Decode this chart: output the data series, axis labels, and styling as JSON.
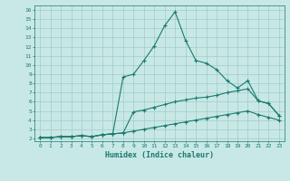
{
  "xlabel": "Humidex (Indice chaleur)",
  "bg_color": "#c8e8e5",
  "grid_color": "#a0ccc8",
  "line_color": "#1a7a6e",
  "xlim": [
    -0.5,
    23.5
  ],
  "ylim": [
    1.7,
    16.5
  ],
  "xticks": [
    0,
    1,
    2,
    3,
    4,
    5,
    6,
    7,
    8,
    9,
    10,
    11,
    12,
    13,
    14,
    15,
    16,
    17,
    18,
    19,
    20,
    21,
    22,
    23
  ],
  "yticks": [
    2,
    3,
    4,
    5,
    6,
    7,
    8,
    9,
    10,
    11,
    12,
    13,
    14,
    15,
    16
  ],
  "line1_x": [
    0,
    1,
    2,
    3,
    4,
    5,
    6,
    7,
    8,
    9,
    10,
    11,
    12,
    13,
    14,
    15,
    16,
    17,
    18,
    19,
    20,
    21,
    22,
    23
  ],
  "line1_y": [
    2.1,
    2.1,
    2.2,
    2.2,
    2.3,
    2.2,
    2.4,
    2.5,
    8.7,
    9.0,
    10.5,
    12.1,
    14.3,
    15.8,
    12.7,
    10.5,
    10.2,
    9.5,
    8.3,
    7.5,
    8.3,
    6.1,
    5.8,
    4.5
  ],
  "line2_x": [
    0,
    1,
    2,
    3,
    4,
    5,
    6,
    7,
    8,
    9,
    10,
    11,
    12,
    13,
    14,
    15,
    16,
    17,
    18,
    19,
    20,
    21,
    22,
    23
  ],
  "line2_y": [
    2.1,
    2.1,
    2.2,
    2.2,
    2.3,
    2.2,
    2.4,
    2.5,
    2.6,
    4.9,
    5.1,
    5.4,
    5.7,
    6.0,
    6.2,
    6.4,
    6.5,
    6.7,
    7.0,
    7.2,
    7.4,
    6.1,
    5.8,
    4.5
  ],
  "line3_x": [
    0,
    1,
    2,
    3,
    4,
    5,
    6,
    7,
    8,
    9,
    10,
    11,
    12,
    13,
    14,
    15,
    16,
    17,
    18,
    19,
    20,
    21,
    22,
    23
  ],
  "line3_y": [
    2.1,
    2.1,
    2.2,
    2.2,
    2.3,
    2.2,
    2.4,
    2.5,
    2.6,
    2.8,
    3.0,
    3.2,
    3.4,
    3.6,
    3.8,
    4.0,
    4.2,
    4.4,
    4.6,
    4.8,
    5.0,
    4.6,
    4.3,
    4.0
  ]
}
